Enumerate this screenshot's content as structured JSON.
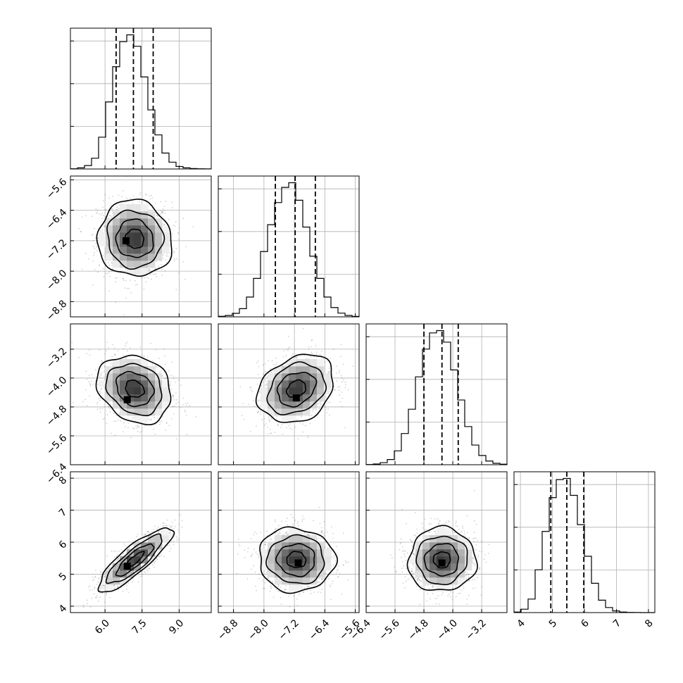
{
  "chart_data": {
    "type": "corner",
    "grid": true,
    "parameters": [
      {
        "id": "p0",
        "range": [
          4.6,
          10.3
        ],
        "ticks": [
          6.0,
          7.5,
          9.0
        ],
        "tick_labels": [
          "6.0",
          "7.5",
          "9.0"
        ],
        "quantiles": [
          6.45,
          7.15,
          7.95
        ],
        "mean": 7.2,
        "sd": 0.75,
        "histogram": {
          "edges": [
            4.6,
            4.885,
            5.17,
            5.455,
            5.74,
            6.025,
            6.31,
            6.595,
            6.88,
            7.165,
            7.45,
            7.735,
            8.02,
            8.305,
            8.59,
            8.875,
            9.16,
            9.445,
            9.73,
            10.015,
            10.3
          ],
          "counts": [
            2,
            10,
            30,
            95,
            280,
            590,
            900,
            1120,
            1180,
            1080,
            810,
            520,
            300,
            140,
            60,
            22,
            10,
            4,
            2,
            1
          ]
        }
      },
      {
        "id": "p1",
        "range": [
          -9.2,
          -5.5
        ],
        "ticks": [
          -8.8,
          -8.0,
          -7.2,
          -6.4,
          -5.6
        ],
        "tick_labels": [
          "−8.8",
          "−8.0",
          "−7.2",
          "−6.4",
          "−5.6"
        ],
        "quantiles": [
          -7.7,
          -7.18,
          -6.65
        ],
        "mean": -7.15,
        "sd": 0.5,
        "histogram": {
          "edges": [
            -9.2,
            -9.015,
            -8.83,
            -8.645,
            -8.46,
            -8.275,
            -8.09,
            -7.905,
            -7.72,
            -7.535,
            -7.35,
            -7.165,
            -6.98,
            -6.795,
            -6.61,
            -6.425,
            -6.24,
            -6.055,
            -5.87,
            -5.685,
            -5.5
          ],
          "counts": [
            5,
            12,
            30,
            70,
            170,
            330,
            560,
            790,
            980,
            1110,
            1150,
            1000,
            770,
            520,
            330,
            170,
            80,
            32,
            12,
            4
          ]
        }
      },
      {
        "id": "p2",
        "range": [
          -6.4,
          -2.5
        ],
        "ticks": [
          -6.4,
          -5.6,
          -4.8,
          -4.0,
          -3.2
        ],
        "tick_labels": [
          "−6.4",
          "−5.6",
          "−4.8",
          "−4.0",
          "−3.2"
        ],
        "quantiles": [
          -4.8,
          -4.3,
          -3.85
        ],
        "mean": -4.3,
        "sd": 0.47,
        "histogram": {
          "edges": [
            -6.4,
            -6.205,
            -6.01,
            -5.815,
            -5.62,
            -5.425,
            -5.23,
            -5.035,
            -4.84,
            -4.645,
            -4.45,
            -4.255,
            -4.06,
            -3.865,
            -3.67,
            -3.475,
            -3.28,
            -3.085,
            -2.89,
            -2.695,
            -2.5
          ],
          "counts": [
            2,
            6,
            18,
            45,
            120,
            270,
            480,
            760,
            1000,
            1140,
            1160,
            1060,
            820,
            560,
            330,
            170,
            80,
            32,
            12,
            5
          ]
        }
      },
      {
        "id": "p3",
        "range": [
          3.8,
          8.2
        ],
        "ticks": [
          4,
          5,
          6,
          7,
          8
        ],
        "tick_labels": [
          "4",
          "5",
          "6",
          "7",
          "8"
        ],
        "quantiles": [
          4.95,
          5.45,
          5.98
        ],
        "mean": 5.45,
        "sd": 0.5,
        "histogram": {
          "edges": [
            3.8,
            4.02,
            4.24,
            4.46,
            4.68,
            4.9,
            5.12,
            5.34,
            5.56,
            5.78,
            6.0,
            6.22,
            6.44,
            6.66,
            6.88,
            7.1,
            7.32,
            7.54,
            7.76,
            7.98,
            8.2
          ],
          "counts": [
            5,
            30,
            120,
            380,
            720,
            1020,
            1180,
            1190,
            1040,
            780,
            500,
            260,
            110,
            45,
            15,
            5,
            2,
            1,
            0,
            0
          ]
        }
      }
    ],
    "pairs": [
      {
        "row": 1,
        "col": 0,
        "mean": [
          7.2,
          -7.15
        ],
        "sd": [
          0.75,
          0.5
        ],
        "rho": -0.05,
        "mode": [
          6.85,
          -7.2
        ]
      },
      {
        "row": 2,
        "col": 0,
        "mean": [
          7.2,
          -4.3
        ],
        "sd": [
          0.75,
          0.47
        ],
        "rho": -0.2,
        "mode": [
          6.9,
          -4.6
        ]
      },
      {
        "row": 2,
        "col": 1,
        "mean": [
          -7.15,
          -4.3
        ],
        "sd": [
          0.5,
          0.47
        ],
        "rho": 0.25,
        "mode": [
          -7.15,
          -4.55
        ]
      },
      {
        "row": 3,
        "col": 0,
        "mean": [
          7.2,
          5.45
        ],
        "sd": [
          0.75,
          0.5
        ],
        "rho": 0.85,
        "mode": [
          6.9,
          5.25
        ]
      },
      {
        "row": 3,
        "col": 1,
        "mean": [
          -7.15,
          5.45
        ],
        "sd": [
          0.5,
          0.5
        ],
        "rho": -0.03,
        "mode": [
          -7.1,
          5.35
        ]
      },
      {
        "row": 3,
        "col": 2,
        "mean": [
          -4.3,
          5.45
        ],
        "sd": [
          0.47,
          0.5
        ],
        "rho": 0.02,
        "mode": [
          -4.3,
          5.35
        ]
      }
    ]
  }
}
